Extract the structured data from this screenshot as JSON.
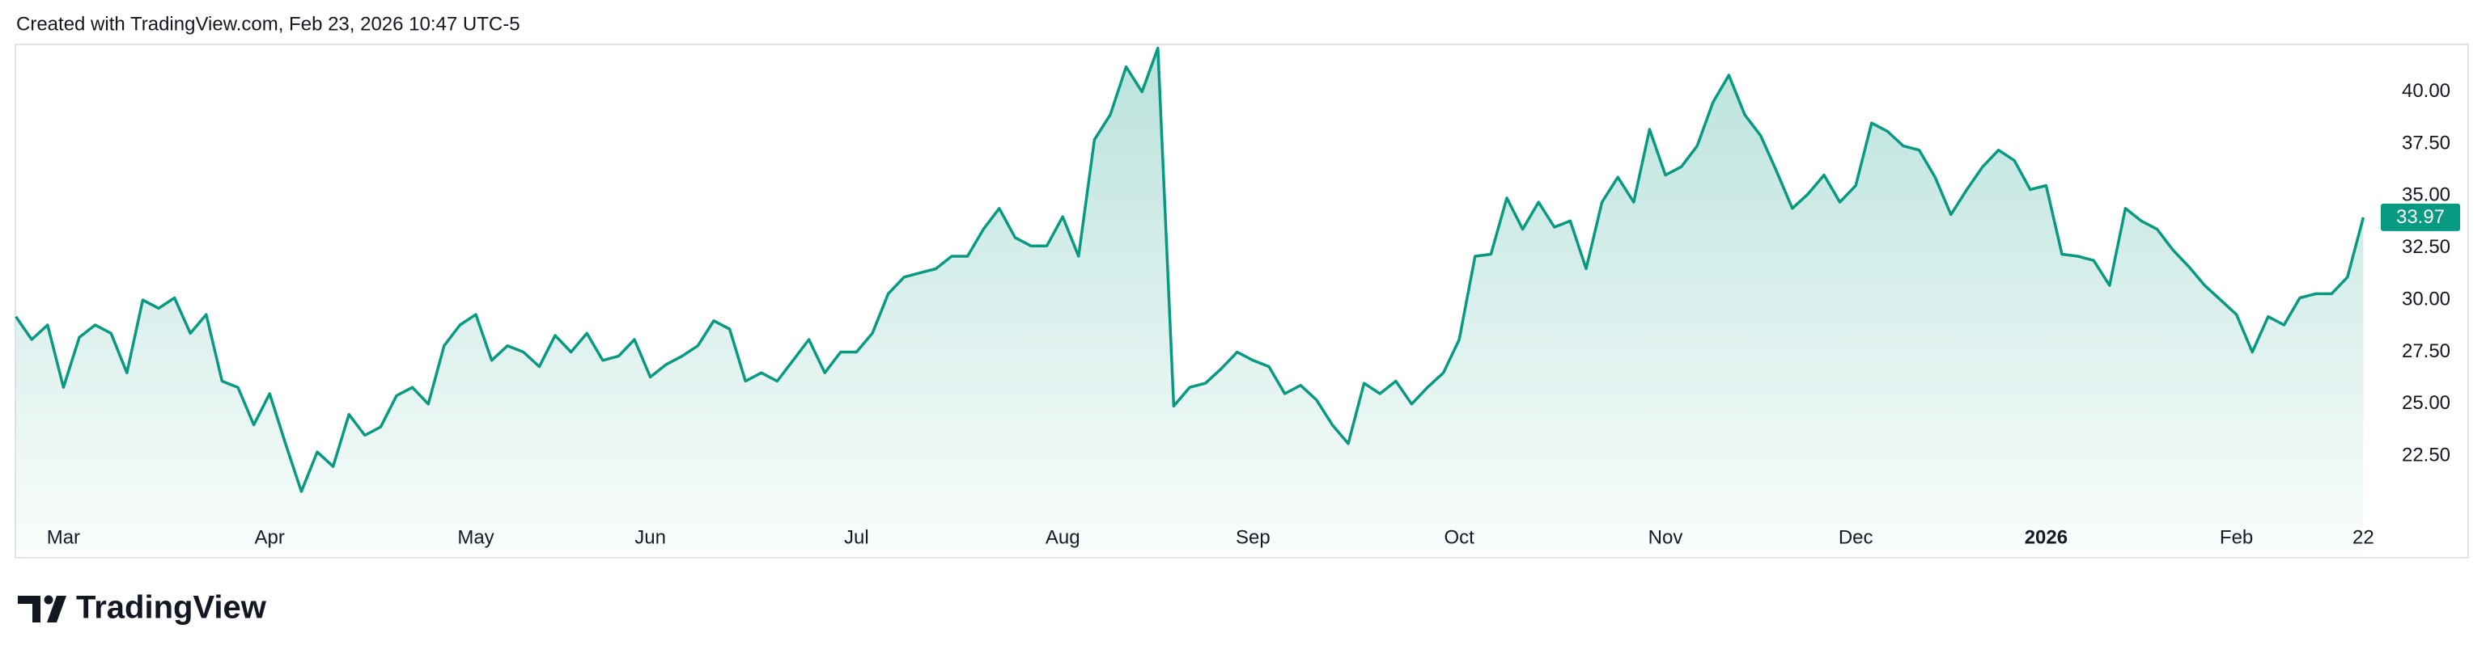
{
  "header": "Created with TradingView.com, Feb 23, 2026 10:47 UTC-5",
  "footer": {
    "brand": "TradingView"
  },
  "chart_data": {
    "type": "area",
    "color": "#089981",
    "categories": [
      null,
      null,
      null,
      "Mar",
      null,
      null,
      null,
      null,
      null,
      null,
      null,
      null,
      null,
      null,
      null,
      null,
      "Apr",
      null,
      null,
      null,
      null,
      null,
      null,
      null,
      null,
      null,
      null,
      null,
      null,
      "May",
      null,
      null,
      null,
      null,
      null,
      null,
      null,
      null,
      null,
      null,
      "Jun",
      null,
      null,
      null,
      null,
      null,
      null,
      null,
      null,
      null,
      null,
      null,
      null,
      "Jul",
      null,
      null,
      null,
      null,
      null,
      null,
      null,
      null,
      null,
      null,
      null,
      null,
      "Aug",
      null,
      null,
      null,
      null,
      null,
      null,
      null,
      null,
      null,
      null,
      null,
      "Sep",
      null,
      null,
      null,
      null,
      null,
      null,
      null,
      null,
      null,
      null,
      null,
      null,
      "Oct",
      null,
      null,
      null,
      null,
      null,
      null,
      null,
      null,
      null,
      null,
      null,
      null,
      "Nov",
      null,
      null,
      null,
      null,
      null,
      null,
      null,
      null,
      null,
      null,
      null,
      "Dec",
      null,
      null,
      null,
      null,
      null,
      null,
      null,
      null,
      null,
      null,
      null,
      "2026",
      null,
      null,
      null,
      null,
      null,
      null,
      null,
      null,
      null,
      null,
      null,
      "Feb",
      null,
      null,
      null,
      null,
      null,
      null,
      null,
      "22"
    ],
    "values": [
      29.2,
      28.1,
      28.8,
      25.8,
      28.2,
      28.8,
      28.4,
      26.5,
      30.0,
      29.6,
      30.1,
      28.4,
      29.3,
      26.1,
      25.8,
      24.0,
      25.5,
      23.1,
      20.8,
      22.7,
      22.0,
      24.5,
      23.5,
      23.9,
      25.4,
      25.8,
      25.0,
      27.8,
      28.8,
      29.3,
      27.1,
      27.8,
      27.5,
      26.8,
      28.3,
      27.5,
      28.4,
      27.1,
      27.3,
      28.1,
      26.3,
      26.9,
      27.3,
      27.8,
      29.0,
      28.6,
      26.1,
      26.5,
      26.1,
      27.1,
      28.1,
      26.5,
      27.5,
      27.5,
      28.4,
      30.3,
      31.1,
      31.3,
      31.5,
      32.1,
      32.1,
      33.4,
      34.4,
      33.0,
      32.6,
      32.6,
      34.0,
      32.1,
      37.7,
      38.9,
      41.2,
      40.0,
      42.1,
      24.9,
      25.8,
      26.0,
      26.7,
      27.5,
      27.1,
      26.8,
      25.5,
      25.9,
      25.2,
      24.0,
      23.1,
      26.0,
      25.5,
      26.1,
      25.0,
      25.8,
      26.5,
      28.1,
      32.1,
      32.2,
      34.9,
      33.4,
      34.7,
      33.5,
      33.8,
      31.5,
      34.7,
      35.9,
      34.7,
      38.2,
      36.0,
      36.4,
      37.4,
      39.5,
      40.8,
      38.9,
      37.9,
      36.2,
      34.4,
      35.1,
      36.0,
      34.7,
      35.5,
      38.5,
      38.1,
      37.4,
      37.2,
      35.9,
      34.1,
      35.3,
      36.4,
      37.2,
      36.7,
      35.3,
      35.5,
      32.2,
      32.1,
      31.9,
      30.7,
      34.4,
      33.8,
      33.4,
      32.4,
      31.6,
      30.7,
      30.0,
      29.3,
      27.5,
      29.2,
      28.8,
      30.1,
      30.3,
      30.3,
      31.1,
      33.97
    ],
    "ylim": [
      19.3,
      42.3
    ],
    "yticks": [
      {
        "value": 22.5,
        "label": "22.50"
      },
      {
        "value": 25,
        "label": "25.00"
      },
      {
        "value": 27.5,
        "label": "27.50"
      },
      {
        "value": 30,
        "label": "30.00"
      },
      {
        "value": 32.5,
        "label": "32.50"
      },
      {
        "value": 35,
        "label": "35.00"
      },
      {
        "value": 37.5,
        "label": "37.50"
      },
      {
        "value": 40,
        "label": "40.00"
      }
    ],
    "grid": false,
    "last_value_badge": true
  }
}
